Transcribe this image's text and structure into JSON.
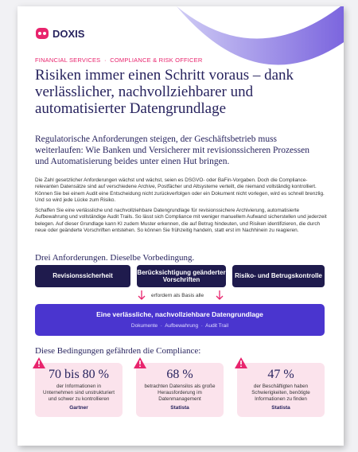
{
  "header": {
    "logo": "DOXIS",
    "tags": [
      "FINANCIAL SERVICES",
      "COMPLIANCE & RISK OFFICER"
    ]
  },
  "title": "Risiken immer einen Schritt voraus – dank verlässlicher, nachvollziehbarer und automatisierter Datengrundlage",
  "lead": "Regulatorische Anforderungen steigen, der Geschäftsbetrieb muss weiterlaufen: Wie Banken und Versicherer mit revisionssicheren Prozessen und Automatisierung beides unter einen Hut bringen.",
  "paragraphs": [
    "Die Zahl gesetzlicher Anforderungen wächst und wächst, seien es DSGVO- oder BaFin-Vorgaben. Doch die Compliance-relevanten Datensätze sind auf verschiedene Archive, Postfächer und Altsysteme verteilt, die niemand vollständig kontrolliert. Können Sie bei einem Audit eine Entscheidung nicht zurückverfolgen oder ein Dokument nicht vorlegen, wird es schnell brenzlig. Und so wird jede Lücke zum Risiko.",
    "Schaffen Sie eine verlässliche und nachvollziehbare Datengrundlage für revisionssichere Archivierung, automatisierte Aufbewahrung und vollständige Audit Trails. So lässt sich Compliance mit weniger manuellem Aufwand sicherstellen und jederzeit belegen. Auf dieser Grundlage kann KI zudem Muster erkennen, die auf Betrug hindeuten, und Risiken identifizieren, die durch neue oder geänderte Vorschriften entstehen. So können Sie frühzeitig handeln, statt erst im Nachhinein zu reagieren."
  ],
  "diagram": {
    "heading": "Drei Anforderungen. Dieselbe Vorbedingung.",
    "requirements": [
      "Revisionssicherheit",
      "Berücksichtigung geänderter Vorschriften",
      "Risiko- und Betrugskontrolle"
    ],
    "connector": "erfordern als Basis alle",
    "base": {
      "title": "Eine verlässliche, nachvollziehbare Datengrundlage",
      "items": [
        "Dokumente",
        "Aufbewahrung",
        "Audit Trail"
      ]
    }
  },
  "stats": {
    "heading": "Diese Bedingungen gefährden die Compliance:",
    "cards": [
      {
        "value": "70 bis 80 %",
        "text": "der Informationen in Unternehmen sind unstrukturiert und schwer zu kontrollieren",
        "source": "Gartner"
      },
      {
        "value": "68 %",
        "text": "betrachten Datensilos als große Herausforderung im Datenmanagement",
        "source": "Statista"
      },
      {
        "value": "47 %",
        "text": "der Beschäftigten haben Schwierigkeiten, benötigte Informationen zu finden",
        "source": "Statista"
      }
    ]
  }
}
